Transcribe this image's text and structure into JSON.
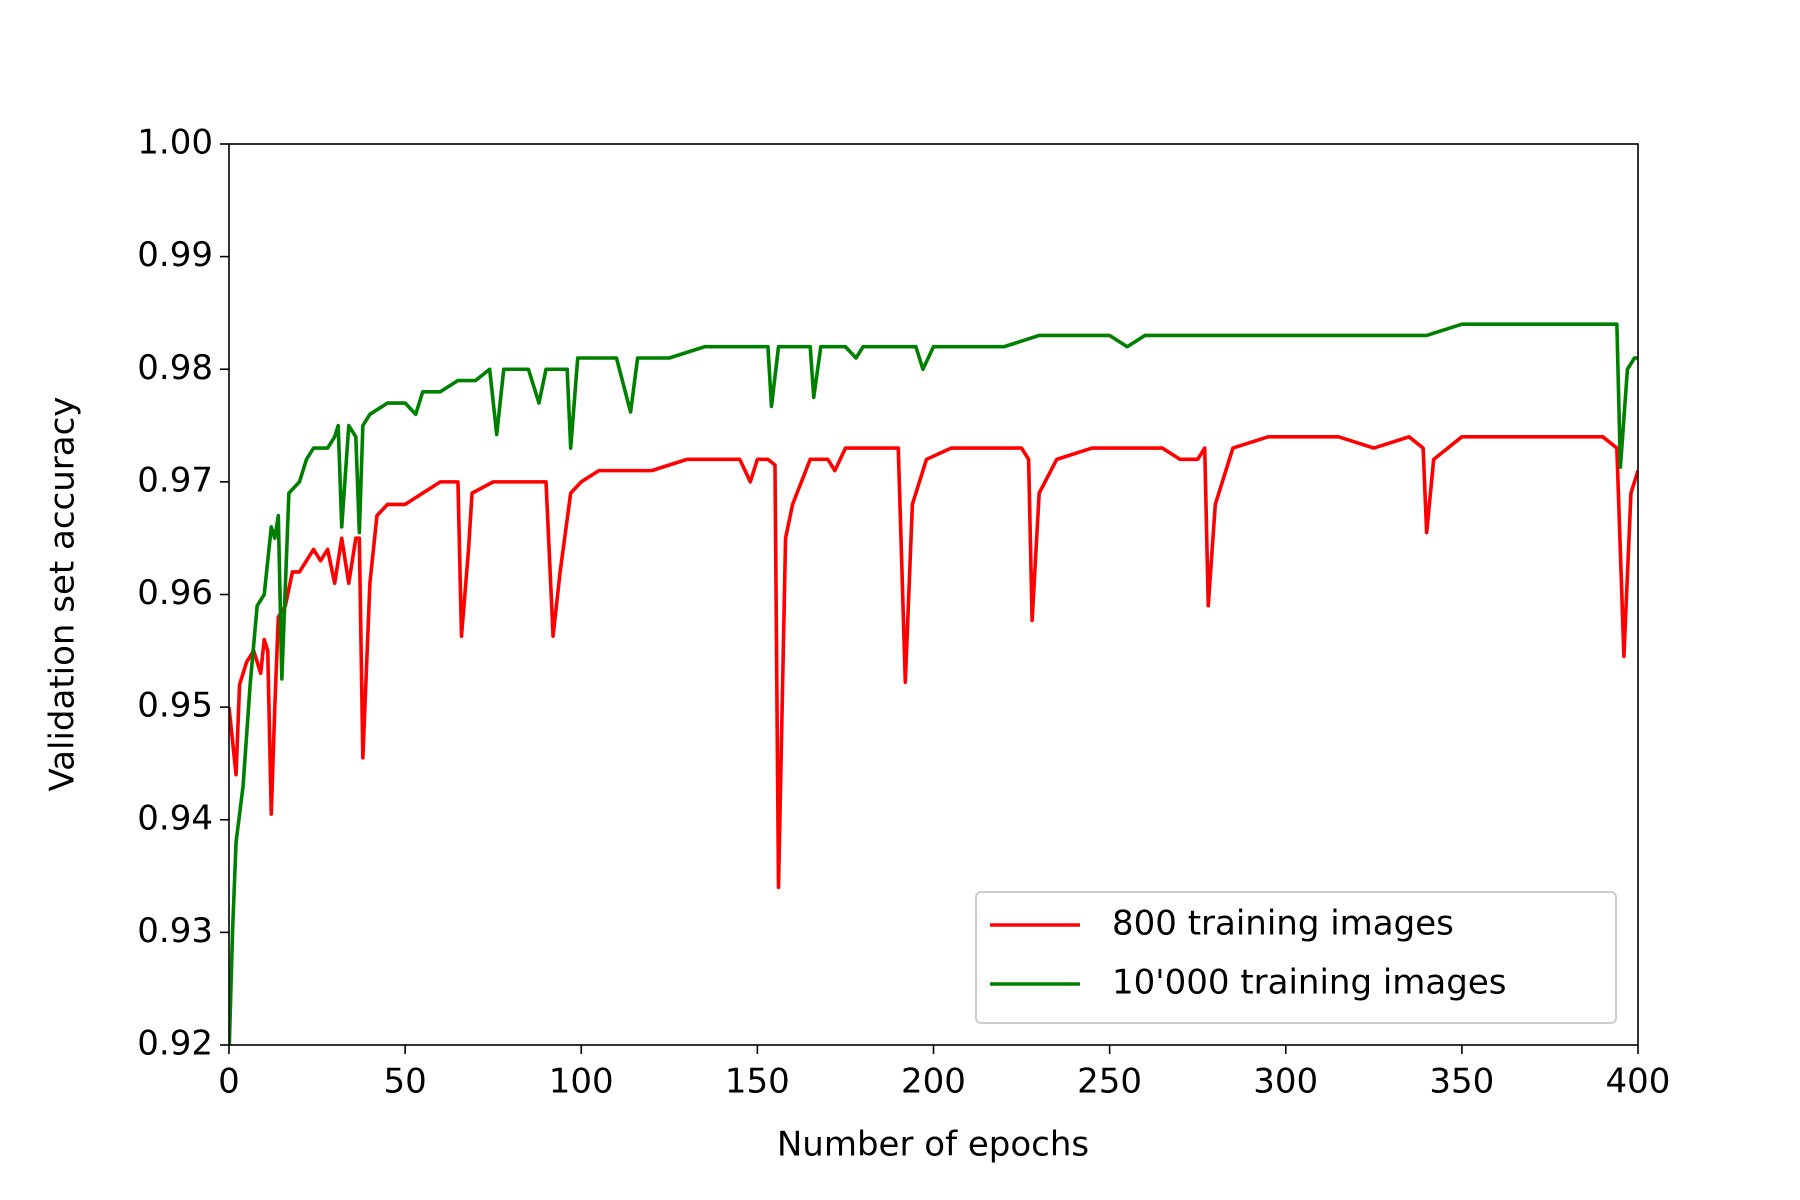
{
  "chart_data": {
    "type": "line",
    "xlabel": "Number of epochs",
    "ylabel": "Validation set accuracy",
    "xlim": [
      0,
      400
    ],
    "xticks": [
      0,
      50,
      100,
      150,
      200,
      250,
      300,
      350,
      400
    ],
    "ylim": [
      0.92,
      1.0
    ],
    "yticks": [
      0.92,
      0.93,
      0.94,
      0.95,
      0.96,
      0.97,
      0.98,
      0.99,
      {
        "value": 1.0,
        "label": "1.00"
      }
    ],
    "grid": false,
    "legend": "lower right",
    "series": [
      {
        "name": "800 training images",
        "color": "#ff0000",
        "x": [
          0,
          2,
          3,
          5,
          7,
          9,
          10,
          11,
          12,
          13,
          14,
          16,
          18,
          20,
          22,
          24,
          26,
          28,
          30,
          32,
          34,
          36,
          37,
          38,
          40,
          42,
          45,
          50,
          55,
          60,
          65,
          66,
          68,
          69,
          75,
          80,
          85,
          90,
          92,
          94,
          97,
          100,
          105,
          110,
          120,
          130,
          140,
          145,
          148,
          150,
          153,
          155,
          156,
          158,
          160,
          165,
          170,
          172,
          175,
          185,
          190,
          192,
          194,
          198,
          205,
          215,
          225,
          227,
          228,
          230,
          235,
          245,
          255,
          265,
          270,
          275,
          277,
          278,
          280,
          285,
          295,
          305,
          315,
          325,
          335,
          339,
          340,
          342,
          350,
          360,
          370,
          380,
          390,
          394,
          396,
          398,
          400
        ],
        "values": [
          0.95,
          0.944,
          0.952,
          0.954,
          0.955,
          0.953,
          0.956,
          0.955,
          0.9405,
          0.95,
          0.958,
          0.959,
          0.962,
          0.962,
          0.963,
          0.964,
          0.963,
          0.964,
          0.961,
          0.965,
          0.961,
          0.965,
          0.965,
          0.9455,
          0.961,
          0.967,
          0.968,
          0.968,
          0.969,
          0.97,
          0.97,
          0.9563,
          0.964,
          0.969,
          0.97,
          0.97,
          0.97,
          0.97,
          0.9563,
          0.962,
          0.969,
          0.97,
          0.971,
          0.971,
          0.971,
          0.972,
          0.972,
          0.972,
          0.97,
          0.972,
          0.972,
          0.9715,
          0.934,
          0.965,
          0.968,
          0.972,
          0.972,
          0.971,
          0.973,
          0.973,
          0.973,
          0.9522,
          0.968,
          0.972,
          0.973,
          0.973,
          0.973,
          0.972,
          0.9577,
          0.969,
          0.972,
          0.973,
          0.973,
          0.973,
          0.972,
          0.972,
          0.973,
          0.959,
          0.968,
          0.973,
          0.974,
          0.974,
          0.974,
          0.973,
          0.974,
          0.973,
          0.9655,
          0.972,
          0.974,
          0.974,
          0.974,
          0.974,
          0.974,
          0.973,
          0.9545,
          0.969,
          0.971
        ]
      },
      {
        "name": "10'000 training images",
        "color": "#008000",
        "x": [
          0,
          1,
          2,
          4,
          6,
          8,
          10,
          11,
          12,
          13,
          14,
          15,
          17,
          20,
          22,
          24,
          26,
          28,
          30,
          31,
          32,
          34,
          36,
          37,
          38,
          40,
          45,
          50,
          53,
          55,
          60,
          65,
          70,
          74,
          76,
          78,
          85,
          88,
          90,
          96,
          97,
          99,
          105,
          110,
          114,
          116,
          125,
          135,
          145,
          150,
          153,
          154,
          156,
          160,
          165,
          166,
          168,
          175,
          178,
          180,
          190,
          195,
          197,
          200,
          210,
          220,
          230,
          240,
          250,
          255,
          260,
          270,
          280,
          290,
          300,
          310,
          320,
          330,
          340,
          350,
          360,
          370,
          380,
          390,
          394,
          395,
          397,
          399,
          400
        ],
        "values": [
          0.919,
          0.93,
          0.938,
          0.943,
          0.952,
          0.959,
          0.96,
          0.963,
          0.966,
          0.965,
          0.967,
          0.9525,
          0.969,
          0.97,
          0.972,
          0.973,
          0.973,
          0.973,
          0.974,
          0.975,
          0.966,
          0.975,
          0.974,
          0.9655,
          0.975,
          0.976,
          0.977,
          0.977,
          0.976,
          0.978,
          0.978,
          0.979,
          0.979,
          0.98,
          0.9742,
          0.98,
          0.98,
          0.977,
          0.98,
          0.98,
          0.973,
          0.981,
          0.981,
          0.981,
          0.9762,
          0.981,
          0.981,
          0.982,
          0.982,
          0.982,
          0.982,
          0.9767,
          0.982,
          0.982,
          0.982,
          0.9775,
          0.982,
          0.982,
          0.981,
          0.982,
          0.982,
          0.982,
          0.98,
          0.982,
          0.982,
          0.982,
          0.983,
          0.983,
          0.983,
          0.982,
          0.983,
          0.983,
          0.983,
          0.983,
          0.983,
          0.983,
          0.983,
          0.983,
          0.983,
          0.984,
          0.984,
          0.984,
          0.984,
          0.984,
          0.984,
          0.9713,
          0.98,
          0.981,
          0.981
        ]
      }
    ]
  }
}
